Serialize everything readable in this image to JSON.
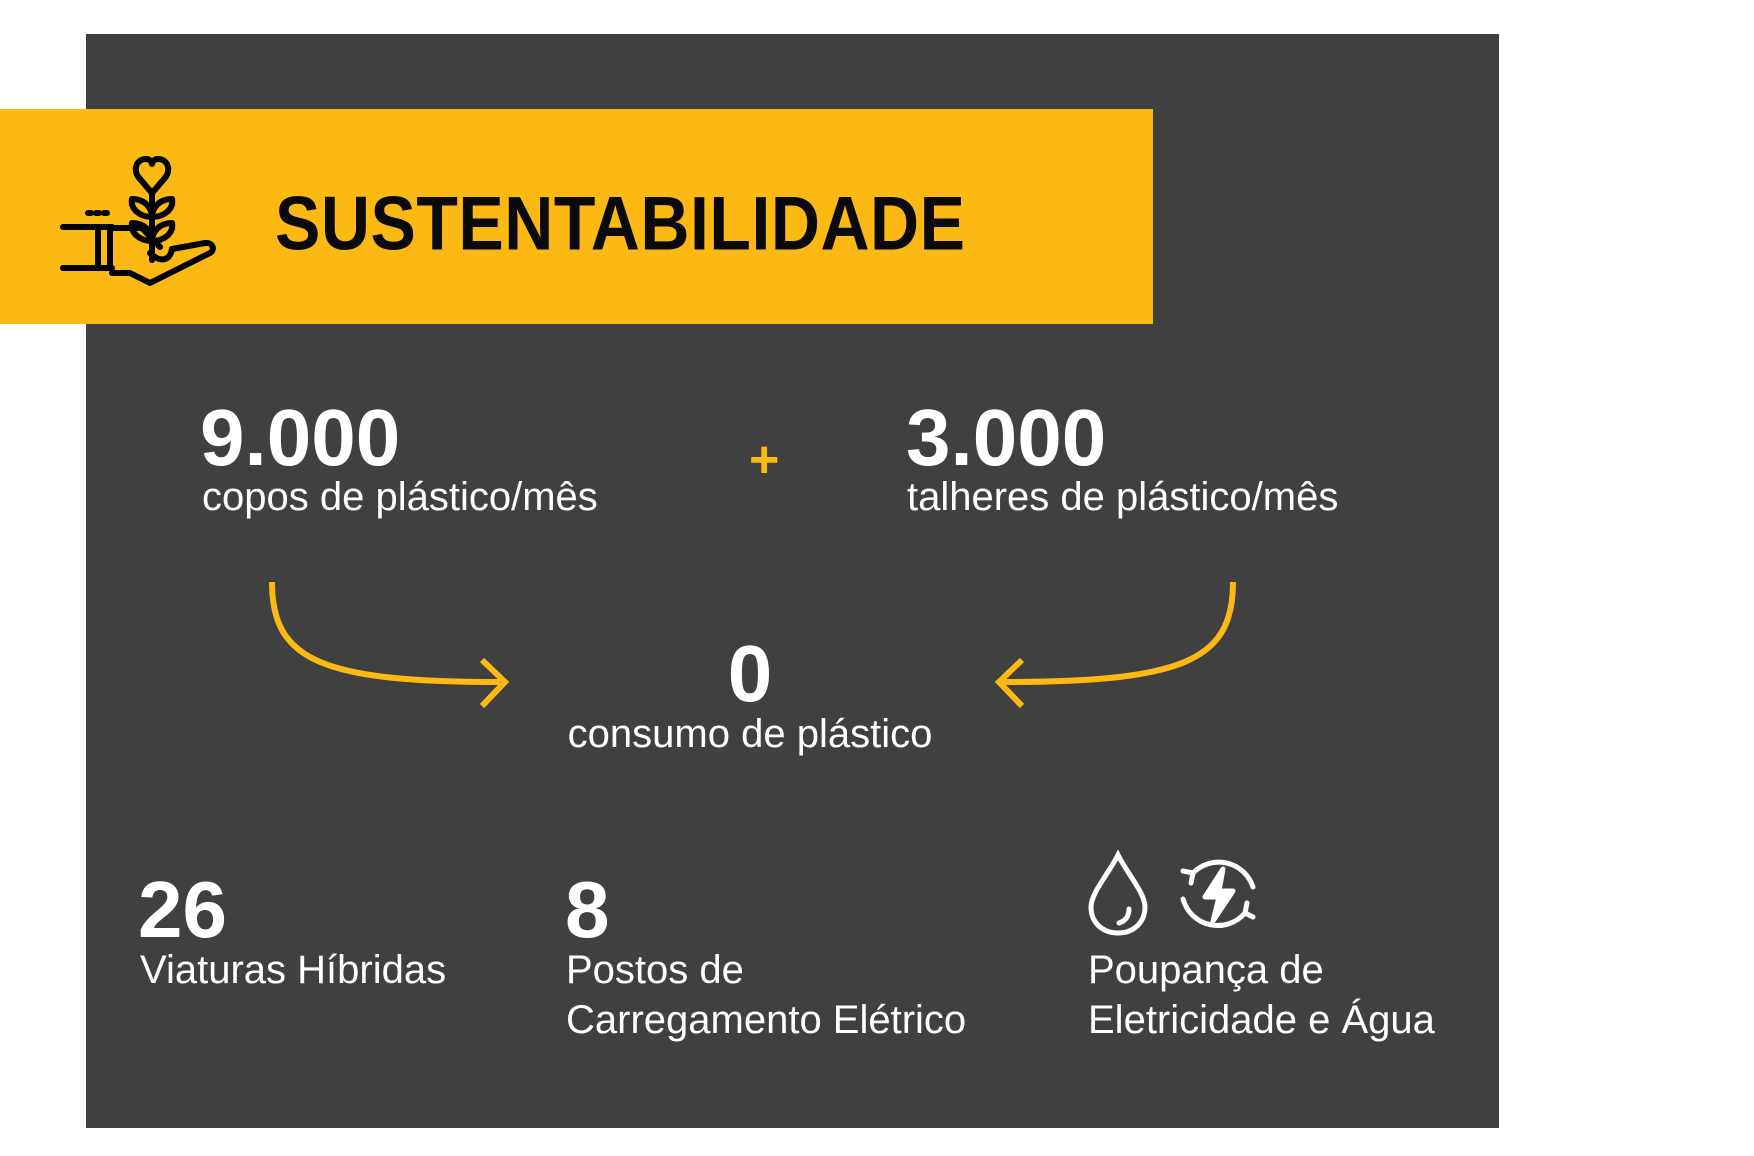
{
  "header": {
    "title": "SUSTENTABILIDADE",
    "icon": "hand-holding-plant-icon"
  },
  "colors": {
    "accent": "#FDB913",
    "panel": "#404040",
    "text": "#ffffff"
  },
  "plastic": {
    "cups": {
      "value": "9.000",
      "label": "copos de plástico/mês"
    },
    "operator": "+",
    "cutlery": {
      "value": "3.000",
      "label": "talheres de plástico/mês"
    },
    "result": {
      "value": "0",
      "label": "consumo de plástico"
    }
  },
  "stats": [
    {
      "value": "26",
      "label": "Viaturas Híbridas"
    },
    {
      "value": "8",
      "label_line1": "Postos de",
      "label_line2": "Carregamento Elétrico"
    },
    {
      "icons": [
        "water-drop-icon",
        "energy-recycle-icon"
      ],
      "label_line1": "Poupança de",
      "label_line2": "Eletricidade e Água"
    }
  ]
}
